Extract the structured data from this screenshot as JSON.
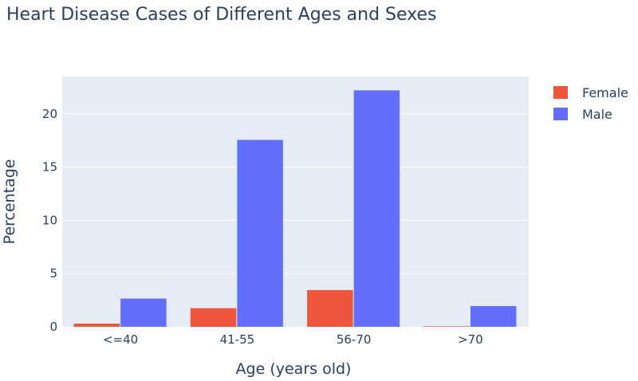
{
  "chart_data": {
    "type": "bar",
    "title": "Heart Disease Cases of Different Ages and Sexes",
    "xlabel": "Age (years old)",
    "ylabel": "Percentage",
    "categories": [
      "<=40",
      "41-55",
      "56-70",
      ">70"
    ],
    "series": [
      {
        "name": "Female",
        "color": "#EF553B",
        "values": [
          0.3,
          1.75,
          3.45,
          0.05
        ]
      },
      {
        "name": "Male",
        "color": "#636EFA",
        "values": [
          2.65,
          17.55,
          22.2,
          1.95
        ]
      }
    ],
    "ylim": [
      0,
      23.5
    ],
    "yticks": [
      0,
      5,
      10,
      15,
      20
    ],
    "grid": true,
    "legend": "top-right",
    "plot_bg": "#E5ECF6"
  }
}
